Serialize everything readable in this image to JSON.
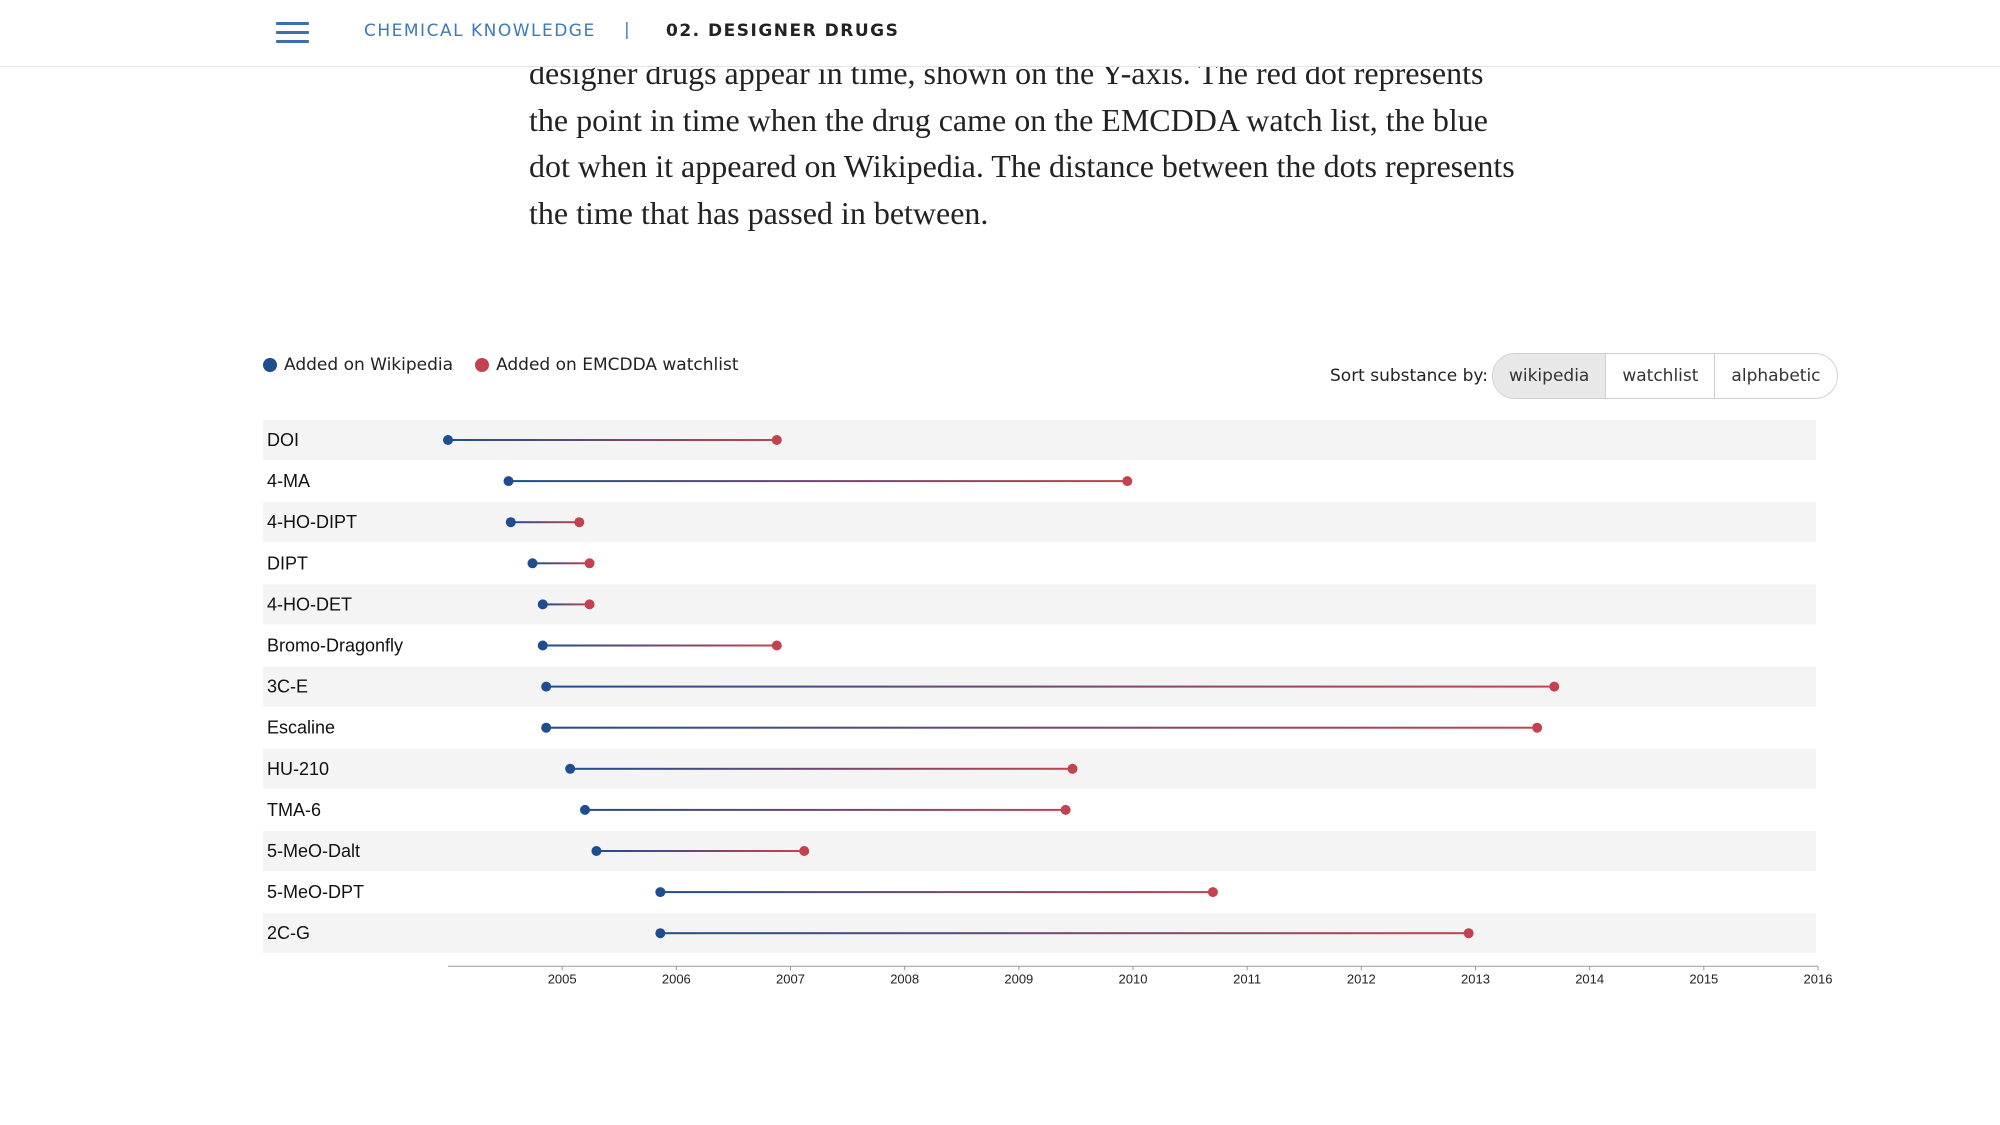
{
  "header": {
    "section": "CHEMICAL KNOWLEDGE",
    "separator": "|",
    "page": "02. DESIGNER DRUGS"
  },
  "intro": {
    "lines": [
      "designer drugs appear in time, shown on the Y-axis. The red dot represents",
      "the point in time when the drug came on the EMCDDA watch list, the blue",
      "dot when it appeared on Wikipedia. The distance between the dots represents",
      "the time that has passed in between."
    ]
  },
  "legend": {
    "wikipedia": "Added on Wikipedia",
    "watchlist": "Added on EMCDDA watchlist"
  },
  "sort": {
    "label": "Sort substance by:",
    "options": [
      "wikipedia",
      "watchlist",
      "alphabetic"
    ],
    "active": "wikipedia"
  },
  "colors": {
    "wikipedia": "#1f4d8f",
    "watchlist": "#c2434f",
    "row_band": "#f4f4f4",
    "accent": "#3b7bb8"
  },
  "chart_data": {
    "type": "dumbbell",
    "xlim": [
      2004.0,
      2016.0
    ],
    "x_ticks": [
      2005,
      2006,
      2007,
      2008,
      2009,
      2010,
      2011,
      2012,
      2013,
      2014,
      2015,
      2016
    ],
    "series": [
      {
        "name": "Added on Wikipedia",
        "key": "wikipedia"
      },
      {
        "name": "Added on EMCDDA watchlist",
        "key": "watchlist"
      }
    ],
    "rows": [
      {
        "substance": "DOI",
        "wikipedia": 2004.0,
        "watchlist": 2006.88
      },
      {
        "substance": "4-MA",
        "wikipedia": 2004.53,
        "watchlist": 2009.95
      },
      {
        "substance": "4-HO-DIPT",
        "wikipedia": 2004.55,
        "watchlist": 2005.15
      },
      {
        "substance": "DIPT",
        "wikipedia": 2004.74,
        "watchlist": 2005.24
      },
      {
        "substance": "4-HO-DET",
        "wikipedia": 2004.83,
        "watchlist": 2005.24
      },
      {
        "substance": "Bromo-Dragonfly",
        "wikipedia": 2004.83,
        "watchlist": 2006.88
      },
      {
        "substance": "3C-E",
        "wikipedia": 2004.86,
        "watchlist": 2013.69
      },
      {
        "substance": "Escaline",
        "wikipedia": 2004.86,
        "watchlist": 2013.54
      },
      {
        "substance": "HU-210",
        "wikipedia": 2005.07,
        "watchlist": 2009.47
      },
      {
        "substance": "TMA-6",
        "wikipedia": 2005.2,
        "watchlist": 2009.41
      },
      {
        "substance": "5-MeO-Dalt",
        "wikipedia": 2005.3,
        "watchlist": 2007.12
      },
      {
        "substance": "5-MeO-DPT",
        "wikipedia": 2005.86,
        "watchlist": 2010.7
      },
      {
        "substance": "2C-G",
        "wikipedia": 2005.86,
        "watchlist": 2012.94
      }
    ]
  }
}
